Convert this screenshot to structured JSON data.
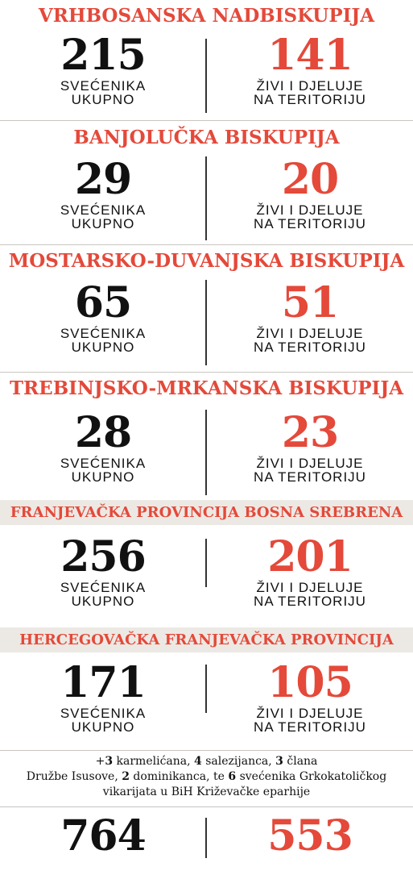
{
  "sections": [
    {
      "title": "VRHBOSANSKA NADBISKUPIJA",
      "total": "215",
      "active": "141"
    },
    {
      "title": "BANJOLUČKA BISKUPIJA",
      "total": "29",
      "active": "20"
    },
    {
      "title": "MOSTARSKO-DUVANJSKA BISKUPIJA",
      "total": "65",
      "active": "51"
    },
    {
      "title": "TREBINJSKO-MRKANSKA BISKUPIJA",
      "total": "28",
      "active": "23"
    },
    {
      "title": "FRANJEVAČKA PROVINCIJA BOSNA SREBRENA",
      "total": "256",
      "active": "201"
    },
    {
      "title": "HERCEGOVAČKA FRANJEVAČKA PROVINCIJA",
      "total": "171",
      "active": "105"
    }
  ],
  "labels": {
    "total_line1": "SVEĆENIKA",
    "total_line2": "UKUPNO",
    "active_line1": "ŽIVI I DJELUJE",
    "active_line2": "NA TERITORIJU"
  },
  "note": {
    "n1": "3",
    "t1": " karmelićana, ",
    "n2": "4",
    "t2": " salezijanca, ",
    "n3": "3",
    "t3": " člana",
    "line2_a": "Družbe Isusove, ",
    "n4": "2",
    "t4": " dominikanca, te ",
    "n5": "6",
    "t5": " svećenika Grkokatoličkog",
    "line3": "vikarijata u BiH Križevačke eparhije"
  },
  "totals": {
    "total": "764",
    "active": "553"
  },
  "colors": {
    "accent": "#e4493a",
    "band": "#ece9e4",
    "text": "#111111"
  }
}
